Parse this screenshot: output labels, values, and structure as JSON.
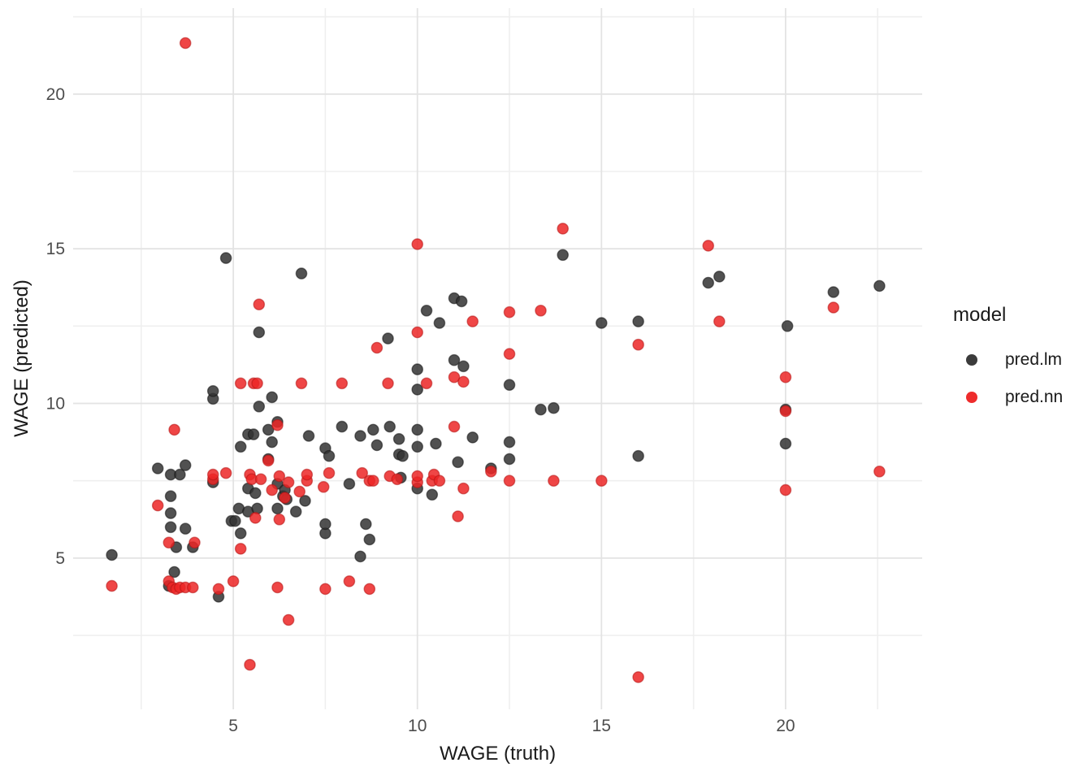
{
  "chart_data": {
    "type": "scatter",
    "title": "",
    "xlabel": "WAGE (truth)",
    "ylabel": "WAGE (predicted)",
    "xlim": [
      0.65,
      23.71
    ],
    "ylim": [
      0.11,
      22.78
    ],
    "x_ticks": [
      5,
      10,
      15,
      20
    ],
    "y_ticks": [
      5,
      10,
      15,
      20
    ],
    "x_minor_ticks": [
      2.5,
      7.5,
      12.5,
      17.5,
      22.5
    ],
    "y_minor_ticks": [
      2.5,
      7.5,
      12.5,
      17.5,
      22.5
    ],
    "grid": true,
    "legend": {
      "title": "model",
      "position": "right"
    },
    "point_radius": 6.6,
    "colors": {
      "background": "#ffffff",
      "grid_major": "#e3e3e3",
      "grid_minor": "#efefef",
      "tick_label": "#4d4d4d",
      "axis_title": "#1a1a1a"
    },
    "series": [
      {
        "name": "pred.lm",
        "fill": "#333333",
        "stroke": "#141414",
        "legend_color": "#3b3b3b",
        "points": [
          [
            1.7,
            5.1
          ],
          [
            2.95,
            7.9
          ],
          [
            3.25,
            4.1
          ],
          [
            3.3,
            6.0
          ],
          [
            3.3,
            6.45
          ],
          [
            3.3,
            7.0
          ],
          [
            3.3,
            7.7
          ],
          [
            3.4,
            4.55
          ],
          [
            3.45,
            5.35
          ],
          [
            3.55,
            7.7
          ],
          [
            3.7,
            5.95
          ],
          [
            3.7,
            8.0
          ],
          [
            3.9,
            5.35
          ],
          [
            4.45,
            7.45
          ],
          [
            4.45,
            10.15
          ],
          [
            4.45,
            10.4
          ],
          [
            4.6,
            3.75
          ],
          [
            4.8,
            14.7
          ],
          [
            4.95,
            6.2
          ],
          [
            5.05,
            6.2
          ],
          [
            5.15,
            6.6
          ],
          [
            5.2,
            5.8
          ],
          [
            5.2,
            8.6
          ],
          [
            5.4,
            6.5
          ],
          [
            5.4,
            7.25
          ],
          [
            5.4,
            9.0
          ],
          [
            5.55,
            9.0
          ],
          [
            5.6,
            7.1
          ],
          [
            5.65,
            6.6
          ],
          [
            5.7,
            9.9
          ],
          [
            5.7,
            12.3
          ],
          [
            5.95,
            8.2
          ],
          [
            5.95,
            9.15
          ],
          [
            6.05,
            8.75
          ],
          [
            6.05,
            10.2
          ],
          [
            6.2,
            6.6
          ],
          [
            6.2,
            7.4
          ],
          [
            6.2,
            9.4
          ],
          [
            6.35,
            7.0
          ],
          [
            6.4,
            7.2
          ],
          [
            6.45,
            6.9
          ],
          [
            6.7,
            6.5
          ],
          [
            6.85,
            14.2
          ],
          [
            6.95,
            6.85
          ],
          [
            7.05,
            8.95
          ],
          [
            7.5,
            5.8
          ],
          [
            7.5,
            6.1
          ],
          [
            7.5,
            8.55
          ],
          [
            7.6,
            8.3
          ],
          [
            7.95,
            9.25
          ],
          [
            8.15,
            7.4
          ],
          [
            8.45,
            5.05
          ],
          [
            8.45,
            8.95
          ],
          [
            8.6,
            6.1
          ],
          [
            8.7,
            5.6
          ],
          [
            8.8,
            9.15
          ],
          [
            8.9,
            8.65
          ],
          [
            9.2,
            12.1
          ],
          [
            9.25,
            9.25
          ],
          [
            9.5,
            8.35
          ],
          [
            9.5,
            8.85
          ],
          [
            9.55,
            7.6
          ],
          [
            9.6,
            8.3
          ],
          [
            10.0,
            7.25
          ],
          [
            10.0,
            8.6
          ],
          [
            10.0,
            9.15
          ],
          [
            10.0,
            10.45
          ],
          [
            10.0,
            11.1
          ],
          [
            10.25,
            13.0
          ],
          [
            10.4,
            7.05
          ],
          [
            10.5,
            8.7
          ],
          [
            10.6,
            12.6
          ],
          [
            11.0,
            11.4
          ],
          [
            11.0,
            13.4
          ],
          [
            11.1,
            8.1
          ],
          [
            11.2,
            13.3
          ],
          [
            11.25,
            11.2
          ],
          [
            11.5,
            8.9
          ],
          [
            12.0,
            7.9
          ],
          [
            12.5,
            8.2
          ],
          [
            12.5,
            8.75
          ],
          [
            12.5,
            10.6
          ],
          [
            13.35,
            9.8
          ],
          [
            13.7,
            9.85
          ],
          [
            13.95,
            14.8
          ],
          [
            15.0,
            12.6
          ],
          [
            16.0,
            8.3
          ],
          [
            16.0,
            12.65
          ],
          [
            17.9,
            13.9
          ],
          [
            18.2,
            14.1
          ],
          [
            20.0,
            8.7
          ],
          [
            20.0,
            9.8
          ],
          [
            20.05,
            12.5
          ],
          [
            21.3,
            13.6
          ],
          [
            22.55,
            13.8
          ]
        ]
      },
      {
        "name": "pred.nn",
        "fill": "#ec2626",
        "stroke": "#b41414",
        "legend_color": "#ee2c2c",
        "points": [
          [
            1.7,
            4.1
          ],
          [
            2.95,
            6.7
          ],
          [
            3.25,
            4.25
          ],
          [
            3.25,
            5.5
          ],
          [
            3.35,
            4.05
          ],
          [
            3.4,
            9.15
          ],
          [
            3.45,
            4.0
          ],
          [
            3.55,
            4.05
          ],
          [
            3.7,
            4.05
          ],
          [
            3.7,
            21.65
          ],
          [
            3.9,
            4.05
          ],
          [
            3.95,
            5.5
          ],
          [
            4.45,
            7.55
          ],
          [
            4.45,
            7.7
          ],
          [
            4.6,
            4.0
          ],
          [
            4.8,
            7.75
          ],
          [
            5.0,
            4.25
          ],
          [
            5.2,
            5.3
          ],
          [
            5.2,
            10.65
          ],
          [
            5.45,
            1.55
          ],
          [
            5.45,
            7.7
          ],
          [
            5.5,
            7.55
          ],
          [
            5.55,
            10.65
          ],
          [
            5.6,
            6.3
          ],
          [
            5.65,
            10.65
          ],
          [
            5.7,
            13.2
          ],
          [
            5.75,
            7.55
          ],
          [
            5.95,
            8.15
          ],
          [
            6.05,
            7.2
          ],
          [
            6.2,
            4.05
          ],
          [
            6.2,
            9.3
          ],
          [
            6.25,
            6.25
          ],
          [
            6.25,
            7.65
          ],
          [
            6.4,
            6.95
          ],
          [
            6.5,
            3.0
          ],
          [
            6.5,
            7.45
          ],
          [
            6.8,
            7.15
          ],
          [
            6.85,
            10.65
          ],
          [
            7.0,
            7.5
          ],
          [
            7.0,
            7.7
          ],
          [
            7.45,
            7.3
          ],
          [
            7.5,
            4.0
          ],
          [
            7.6,
            7.75
          ],
          [
            7.95,
            10.65
          ],
          [
            8.15,
            4.25
          ],
          [
            8.5,
            7.75
          ],
          [
            8.7,
            4.0
          ],
          [
            8.7,
            7.5
          ],
          [
            8.8,
            7.5
          ],
          [
            8.9,
            11.8
          ],
          [
            9.2,
            10.65
          ],
          [
            9.25,
            7.65
          ],
          [
            9.45,
            7.55
          ],
          [
            10.0,
            7.45
          ],
          [
            10.0,
            7.65
          ],
          [
            10.0,
            12.3
          ],
          [
            10.0,
            15.15
          ],
          [
            10.25,
            10.65
          ],
          [
            10.4,
            7.5
          ],
          [
            10.45,
            7.7
          ],
          [
            10.6,
            7.5
          ],
          [
            11.0,
            9.25
          ],
          [
            11.0,
            10.85
          ],
          [
            11.1,
            6.35
          ],
          [
            11.25,
            7.25
          ],
          [
            11.25,
            10.7
          ],
          [
            11.5,
            12.65
          ],
          [
            12.0,
            7.8
          ],
          [
            12.5,
            7.5
          ],
          [
            12.5,
            11.6
          ],
          [
            12.5,
            12.95
          ],
          [
            13.35,
            13.0
          ],
          [
            13.7,
            7.5
          ],
          [
            13.95,
            15.65
          ],
          [
            15.0,
            7.5
          ],
          [
            16.0,
            1.15
          ],
          [
            16.0,
            11.9
          ],
          [
            17.9,
            15.1
          ],
          [
            18.2,
            12.65
          ],
          [
            20.0,
            7.2
          ],
          [
            20.0,
            9.75
          ],
          [
            20.0,
            10.85
          ],
          [
            21.3,
            13.1
          ],
          [
            22.55,
            7.8
          ]
        ]
      }
    ]
  }
}
